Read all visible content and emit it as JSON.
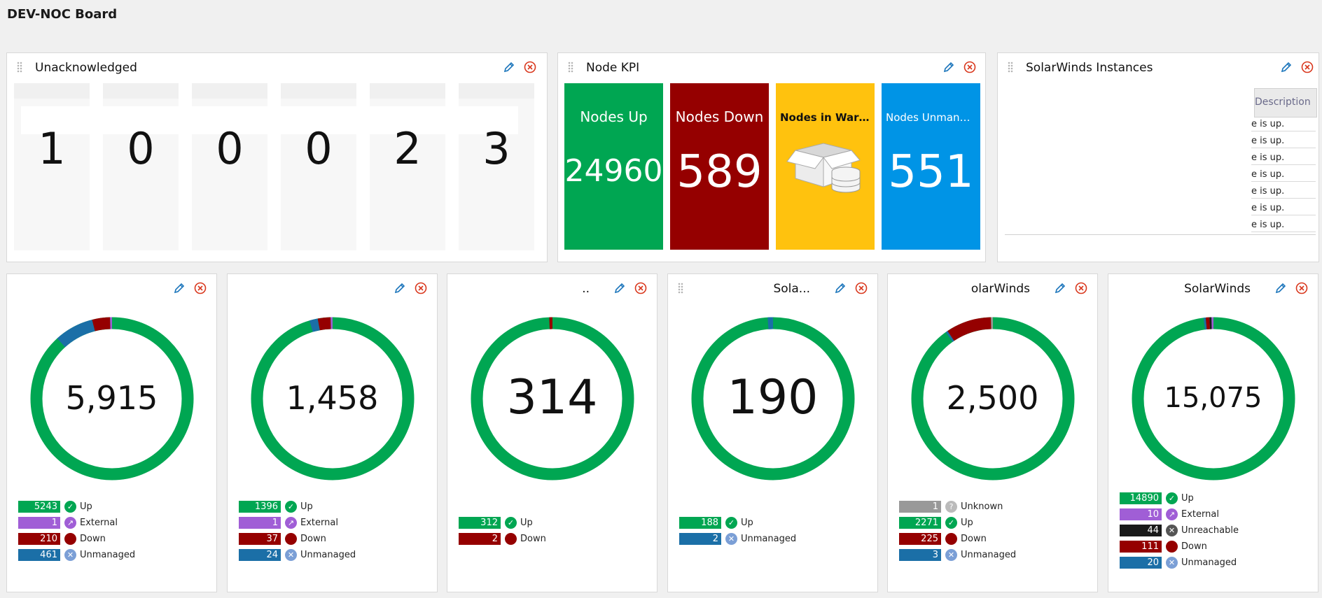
{
  "page": {
    "title": "DEV-NOC Board"
  },
  "colors": {
    "up": "#00a652",
    "down": "#950000",
    "warning": "#ffc20e",
    "unmanaged": "#1b6fa7",
    "kpi_unmanaged": "#0094e6",
    "external": "#a05ed6",
    "unreachable": "#1a1a1a",
    "unknown": "#999999",
    "edit": "#1b75bb",
    "close": "#d9381e"
  },
  "unacknowledged": {
    "title": "Unacknowledged",
    "values": [
      "1",
      "0",
      "0",
      "0",
      "2",
      "3"
    ]
  },
  "node_kpi": {
    "title": "Node KPI",
    "tiles": [
      {
        "label": "Nodes Up",
        "value": "24960",
        "color": "#00a652"
      },
      {
        "label": "Nodes Down",
        "value": "589",
        "color": "#950000"
      },
      {
        "label": "Nodes in Warning",
        "value": "",
        "color": "#ffc20e",
        "icon": "box-database-icon"
      },
      {
        "label": "Nodes Unmana...",
        "value": "551",
        "color": "#0094e6"
      }
    ]
  },
  "instances": {
    "title": "SolarWinds Instances",
    "column_header": "Description",
    "rows": [
      "e is up.",
      "e is up.",
      "e is up.",
      "e is up.",
      "e is up.",
      "e is up.",
      "e is up."
    ]
  },
  "donuts": [
    {
      "title": "",
      "total": "5,915",
      "legend": [
        {
          "count": "5243",
          "status": "up",
          "label": "Up"
        },
        {
          "count": "1",
          "status": "external",
          "label": "External"
        },
        {
          "count": "210",
          "status": "down",
          "label": "Down"
        },
        {
          "count": "461",
          "status": "unmanaged",
          "label": "Unmanaged"
        }
      ]
    },
    {
      "title": "",
      "total": "1,458",
      "legend": [
        {
          "count": "1396",
          "status": "up",
          "label": "Up"
        },
        {
          "count": "1",
          "status": "external",
          "label": "External"
        },
        {
          "count": "37",
          "status": "down",
          "label": "Down"
        },
        {
          "count": "24",
          "status": "unmanaged",
          "label": "Unmanaged"
        }
      ]
    },
    {
      "title": "..",
      "total": "314",
      "legend": [
        {
          "count": "312",
          "status": "up",
          "label": "Up"
        },
        {
          "count": "2",
          "status": "down",
          "label": "Down"
        }
      ]
    },
    {
      "title": "Sola...",
      "total": "190",
      "legend": [
        {
          "count": "188",
          "status": "up",
          "label": "Up"
        },
        {
          "count": "2",
          "status": "unmanaged",
          "label": "Unmanaged"
        }
      ]
    },
    {
      "title": "olarWinds",
      "total": "2,500",
      "legend": [
        {
          "count": "1",
          "status": "unknown",
          "label": "Unknown"
        },
        {
          "count": "2271",
          "status": "up",
          "label": "Up"
        },
        {
          "count": "225",
          "status": "down",
          "label": "Down"
        },
        {
          "count": "3",
          "status": "unmanaged",
          "label": "Unmanaged"
        }
      ]
    },
    {
      "title": "SolarWinds",
      "total": "15,075",
      "legend": [
        {
          "count": "14890",
          "status": "up",
          "label": "Up"
        },
        {
          "count": "10",
          "status": "external",
          "label": "External"
        },
        {
          "count": "44",
          "status": "unreachable",
          "label": "Unreachable"
        },
        {
          "count": "111",
          "status": "down",
          "label": "Down"
        },
        {
          "count": "20",
          "status": "unmanaged",
          "label": "Unmanaged"
        }
      ]
    }
  ]
}
